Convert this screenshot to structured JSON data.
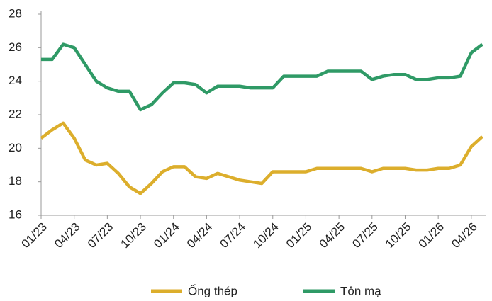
{
  "chart_data": {
    "type": "line",
    "categories": [
      "01/23",
      null,
      null,
      "04/23",
      null,
      null,
      "07/23",
      null,
      null,
      "10/23",
      null,
      null,
      "01/24",
      null,
      null,
      "04/24",
      null,
      null,
      "07/24",
      null,
      null,
      "10/24",
      null,
      null,
      "01/25",
      null,
      null,
      "04/25",
      null,
      null,
      "07/25",
      null,
      null,
      "10/25",
      null,
      null,
      "01/26",
      null,
      null,
      "04/26",
      null
    ],
    "series": [
      {
        "name": "Ống thép",
        "color": "#dcae2c",
        "values": [
          20.6,
          21.1,
          21.5,
          20.6,
          19.3,
          19.0,
          19.1,
          18.5,
          17.7,
          17.3,
          17.9,
          18.6,
          18.9,
          18.9,
          18.3,
          18.2,
          18.5,
          18.3,
          18.1,
          18.0,
          17.9,
          18.6,
          18.6,
          18.6,
          18.6,
          18.8,
          18.8,
          18.8,
          18.8,
          18.8,
          18.6,
          18.8,
          18.8,
          18.8,
          18.7,
          18.7,
          18.8,
          18.8,
          19.0,
          20.1,
          20.7
        ]
      },
      {
        "name": "Tôn mạ",
        "color": "#2f9a66",
        "values": [
          25.3,
          25.3,
          26.2,
          26.0,
          25.0,
          24.0,
          23.6,
          23.4,
          23.4,
          22.3,
          22.6,
          23.3,
          23.9,
          23.9,
          23.8,
          23.3,
          23.7,
          23.7,
          23.7,
          23.6,
          23.6,
          23.6,
          24.3,
          24.3,
          24.3,
          24.3,
          24.6,
          24.6,
          24.6,
          24.6,
          24.1,
          24.3,
          24.4,
          24.4,
          24.1,
          24.1,
          24.2,
          24.2,
          24.3,
          25.7,
          26.2
        ]
      }
    ],
    "ylim": [
      16,
      28
    ],
    "yticks": [
      16,
      18,
      20,
      22,
      24,
      26,
      28
    ],
    "grid": false,
    "legend": "bottom"
  }
}
